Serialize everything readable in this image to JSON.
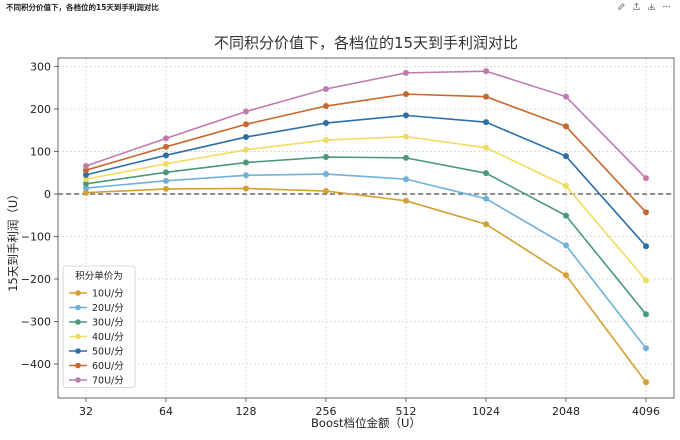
{
  "header": {
    "title": "不同积分价值下，各档位的15天到手利润对比"
  },
  "toolbar": {
    "icons": [
      "edit-icon",
      "share-icon",
      "download-icon",
      "more-icon"
    ]
  },
  "chart_data": {
    "type": "line",
    "title": "不同积分价值下，各档位的15天到手利润对比",
    "xlabel": "Boost档位金额（U）",
    "ylabel": "15天到手利润（U）",
    "x_scale": "log2",
    "categories": [
      "32",
      "64",
      "128",
      "256",
      "512",
      "1024",
      "2048",
      "4096"
    ],
    "ylim": [
      -480,
      320
    ],
    "yticks": [
      300,
      200,
      100,
      0,
      -100,
      -200,
      -300,
      -400
    ],
    "grid": true,
    "zero_line": "dashed",
    "legend": {
      "title": "积分单价为",
      "placement": "lower-left"
    },
    "series": [
      {
        "name": "10U/分",
        "color": "#d4a030",
        "values": [
          3,
          12,
          13,
          7,
          -16,
          -71,
          -191,
          -443
        ]
      },
      {
        "name": "20U/分",
        "color": "#6fb0dc",
        "values": [
          14,
          31,
          44,
          47,
          35,
          -11,
          -121,
          -363
        ]
      },
      {
        "name": "30U/分",
        "color": "#4a9a78",
        "values": [
          24,
          51,
          74,
          87,
          85,
          49,
          -51,
          -283
        ]
      },
      {
        "name": "40U/分",
        "color": "#f0dc60",
        "values": [
          35,
          71,
          104,
          127,
          135,
          109,
          19,
          -203
        ]
      },
      {
        "name": "50U/分",
        "color": "#2c6fa8",
        "values": [
          45,
          91,
          134,
          167,
          185,
          169,
          89,
          -123
        ]
      },
      {
        "name": "60U/分",
        "color": "#c8682c",
        "values": [
          56,
          111,
          164,
          207,
          235,
          229,
          159,
          -43
        ]
      },
      {
        "name": "70U/分",
        "color": "#c07ab0",
        "values": [
          66,
          131,
          194,
          247,
          285,
          289,
          229,
          37
        ]
      }
    ]
  }
}
